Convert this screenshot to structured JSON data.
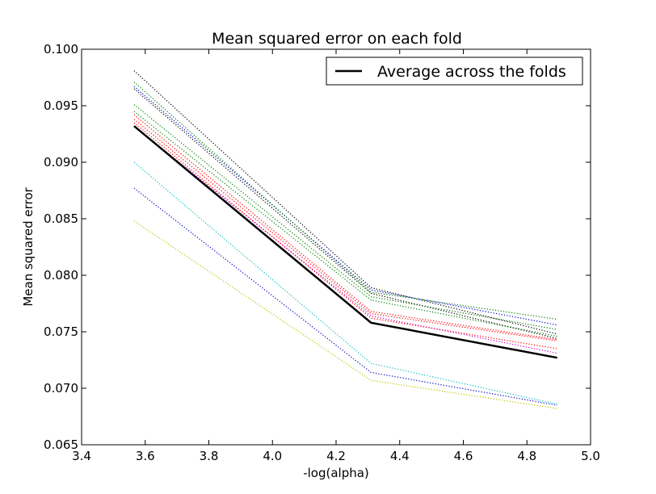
{
  "chart_data": {
    "type": "line",
    "title": "Mean squared error on each fold",
    "xlabel": "-log(alpha)",
    "ylabel": "Mean squared error",
    "xlim": [
      3.4,
      5.0
    ],
    "ylim": [
      0.065,
      0.1
    ],
    "xticks": [
      "3.4",
      "3.6",
      "3.8",
      "4.0",
      "4.2",
      "4.4",
      "4.6",
      "4.8",
      "5.0"
    ],
    "yticks": [
      "0.065",
      "0.070",
      "0.075",
      "0.080",
      "0.085",
      "0.090",
      "0.095",
      "0.100"
    ],
    "grid": false,
    "legend": {
      "placement": "top-right",
      "entries": [
        "Average across the folds"
      ]
    },
    "x": [
      3.565,
      4.31,
      4.895
    ],
    "series": [
      {
        "color": "#000000",
        "style": "dotted",
        "values": [
          0.0981,
          0.0789,
          0.0748
        ]
      },
      {
        "color": "#0000cc",
        "style": "dotted",
        "values": [
          0.0967,
          0.0787,
          0.0756
        ]
      },
      {
        "color": "#008000",
        "style": "dotted",
        "values": [
          0.0971,
          0.0785,
          0.0761
        ]
      },
      {
        "color": "#000000",
        "style": "dotted",
        "values": [
          0.0965,
          0.0784,
          0.0744
        ]
      },
      {
        "color": "#008000",
        "style": "dotted",
        "values": [
          0.0951,
          0.0781,
          0.0752
        ]
      },
      {
        "color": "#008000",
        "style": "dotted",
        "values": [
          0.0945,
          0.0778,
          0.0746
        ]
      },
      {
        "color": "#ff0000",
        "style": "dotted",
        "values": [
          0.0942,
          0.0768,
          0.0743
        ]
      },
      {
        "color": "#ff0000",
        "style": "dotted",
        "values": [
          0.0938,
          0.0766,
          0.0742
        ]
      },
      {
        "color": "#ff0000",
        "style": "dotted",
        "values": [
          0.0935,
          0.0762,
          0.0735
        ]
      },
      {
        "color": "#cc00cc",
        "style": "dotted",
        "values": [
          0.0932,
          0.0764,
          0.0731
        ]
      },
      {
        "color": "#00bfbf",
        "style": "dotted",
        "values": [
          0.09,
          0.0722,
          0.0686
        ]
      },
      {
        "color": "#0000cc",
        "style": "dotted",
        "values": [
          0.0877,
          0.0714,
          0.0685
        ]
      },
      {
        "color": "#bfbf00",
        "style": "dotted",
        "values": [
          0.0848,
          0.0707,
          0.0682
        ]
      },
      {
        "name": "Average across the folds",
        "color": "#000000",
        "style": "solid",
        "values": [
          0.0932,
          0.0758,
          0.0727
        ]
      }
    ]
  }
}
